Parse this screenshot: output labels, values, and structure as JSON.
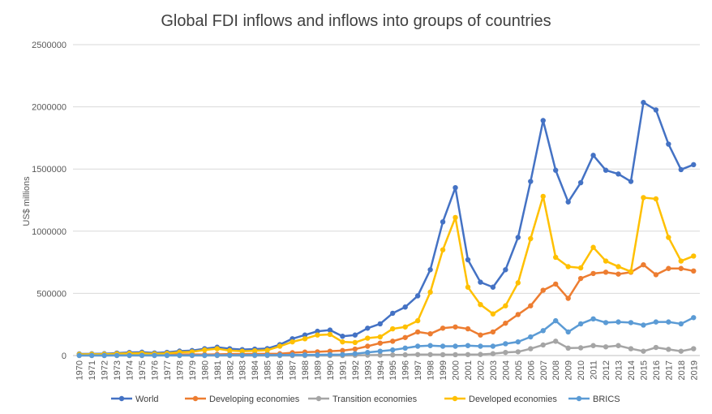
{
  "chart_data": {
    "type": "line",
    "title": "Global FDI inflows and inflows into groups of countries",
    "xlabel": "",
    "ylabel": "US$ millions",
    "ylim": [
      0,
      2500000
    ],
    "yticks": [
      "0",
      "500000",
      "1000000",
      "1500000",
      "2000000",
      "2500000"
    ],
    "ytick_values": [
      0,
      500000,
      1000000,
      1500000,
      2000000,
      2500000
    ],
    "grid": true,
    "legend_position": "bottom",
    "categories": [
      "1970",
      "1971",
      "1972",
      "1973",
      "1974",
      "1975",
      "1976",
      "1977",
      "1978",
      "1979",
      "1980",
      "1981",
      "1982",
      "1983",
      "1984",
      "1985",
      "1986",
      "1987",
      "1988",
      "1989",
      "1990",
      "1991",
      "1992",
      "1993",
      "1994",
      "1995",
      "1996",
      "1997",
      "1998",
      "1999",
      "2000",
      "2001",
      "2002",
      "2003",
      "2004",
      "2005",
      "2006",
      "2007",
      "2008",
      "2009",
      "2010",
      "2011",
      "2012",
      "2013",
      "2014",
      "2015",
      "2016",
      "2017",
      "2018",
      "2019"
    ],
    "xtick_labels": [
      "1970",
      "1971",
      "1972",
      "1973",
      "1974",
      "1975",
      "1976",
      "1977",
      "1978",
      "1979",
      "1980",
      "1981",
      "1982",
      "1983",
      "1984",
      "1985",
      "1986",
      "1987",
      "1988",
      "1989",
      "1990",
      "1991",
      "1992",
      "1993",
      "1994",
      "1995",
      "1996",
      "1997",
      "1998",
      "1999",
      "2000",
      "2001",
      "2002",
      "2003",
      "2004",
      "2005",
      "2006",
      "2007",
      "2008",
      "2009",
      "2010",
      "2011",
      "2012",
      "2013",
      "2014",
      "2015",
      "2016",
      "2017",
      "2018",
      "2019"
    ],
    "series": [
      {
        "name": "World",
        "color": "#4472C4",
        "values": [
          13000,
          14000,
          15000,
          20000,
          25000,
          27000,
          21000,
          26000,
          36000,
          40000,
          55000,
          67000,
          55000,
          48000,
          52000,
          56000,
          88000,
          135000,
          165000,
          195000,
          205000,
          155000,
          165000,
          220000,
          255000,
          340000,
          390000,
          480000,
          690000,
          1075000,
          1350000,
          770000,
          590000,
          550000,
          690000,
          950000,
          1400000,
          1890000,
          1490000,
          1235000,
          1390000,
          1610000,
          1490000,
          1460000,
          1400000,
          2035000,
          1975000,
          1700000,
          1495000,
          1535000
        ]
      },
      {
        "name": "Developing economies",
        "color": "#ED7D31",
        "values": [
          4000,
          4500,
          5000,
          6000,
          7000,
          8000,
          7000,
          8000,
          9000,
          9500,
          8000,
          10000,
          12000,
          12000,
          13000,
          14000,
          15000,
          23000,
          28000,
          30000,
          35000,
          40000,
          52000,
          75000,
          100000,
          115000,
          145000,
          190000,
          175000,
          220000,
          230000,
          215000,
          165000,
          190000,
          260000,
          330000,
          400000,
          525000,
          575000,
          460000,
          620000,
          660000,
          670000,
          655000,
          670000,
          730000,
          650000,
          700000,
          700000,
          680000
        ]
      },
      {
        "name": "Transition economies",
        "color": "#A5A5A5",
        "values": [
          0,
          0,
          0,
          0,
          0,
          0,
          0,
          0,
          0,
          0,
          0,
          0,
          0,
          0,
          0,
          0,
          0,
          0,
          0,
          0,
          0,
          0,
          2000,
          3000,
          4000,
          5000,
          6000,
          8000,
          8000,
          7000,
          7000,
          8000,
          9000,
          15000,
          25000,
          30000,
          55000,
          85000,
          115000,
          60000,
          62000,
          80000,
          70000,
          80000,
          55000,
          35000,
          65000,
          50000,
          35000,
          55000
        ]
      },
      {
        "name": "Developed economies",
        "color": "#FFC000",
        "values": [
          10000,
          11000,
          11000,
          15000,
          18000,
          19000,
          14000,
          18000,
          27000,
          30000,
          45000,
          55000,
          40000,
          35000,
          38000,
          43000,
          75000,
          110000,
          135000,
          165000,
          170000,
          110000,
          105000,
          140000,
          150000,
          215000,
          230000,
          280000,
          510000,
          850000,
          1110000,
          550000,
          410000,
          335000,
          400000,
          585000,
          940000,
          1280000,
          790000,
          715000,
          705000,
          870000,
          760000,
          715000,
          675000,
          1270000,
          1260000,
          950000,
          760000,
          800000
        ]
      },
      {
        "name": "BRICS",
        "color": "#5B9BD5",
        "values": [
          1000,
          1000,
          1000,
          1500,
          1500,
          2000,
          2000,
          2000,
          2000,
          2000,
          2000,
          2500,
          3000,
          3000,
          4000,
          4000,
          4000,
          5000,
          5000,
          6000,
          7000,
          8000,
          15000,
          25000,
          35000,
          45000,
          60000,
          75000,
          80000,
          75000,
          75000,
          80000,
          75000,
          75000,
          95000,
          110000,
          150000,
          200000,
          280000,
          190000,
          255000,
          295000,
          265000,
          270000,
          265000,
          245000,
          270000,
          270000,
          255000,
          305000
        ]
      }
    ]
  }
}
